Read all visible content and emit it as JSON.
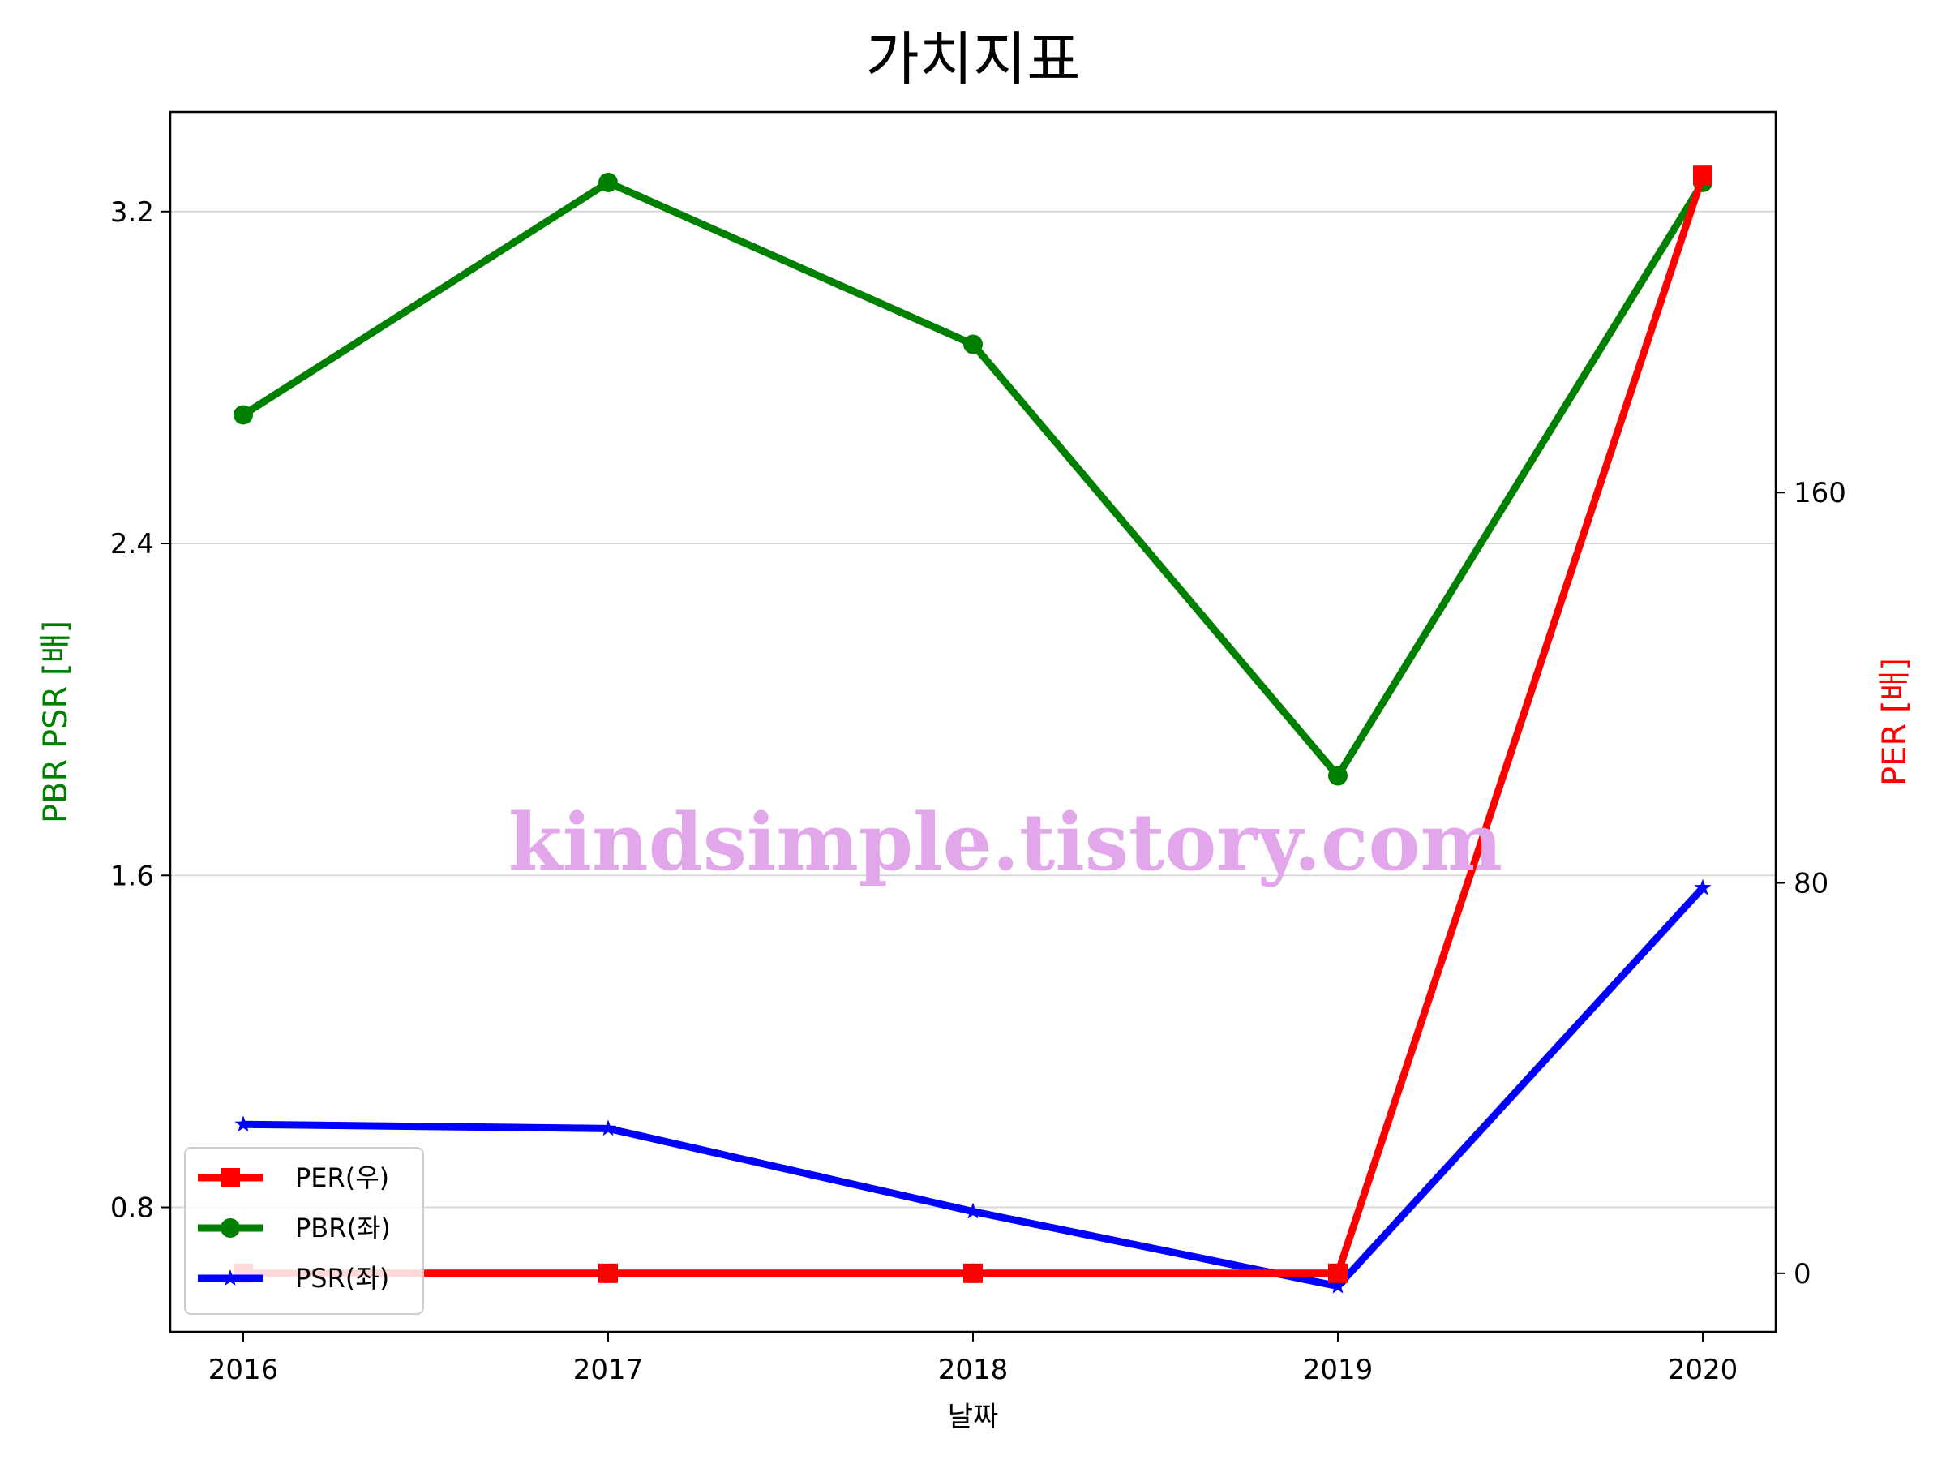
{
  "chart_data": {
    "type": "line",
    "title": "가치지표",
    "xlabel": "날짜",
    "ylabel_left": "PBR PSR [배]",
    "ylabel_right": "PER [배]",
    "categories": [
      "2016",
      "2017",
      "2018",
      "2019",
      "2020"
    ],
    "left_axis": {
      "ylim": [
        0.5,
        3.44
      ],
      "ticks": [
        "0.8",
        "1.6",
        "2.4",
        "3.2"
      ],
      "tick_values": [
        0.8,
        1.6,
        2.4,
        3.2
      ]
    },
    "right_axis": {
      "ylim": [
        -12,
        238
      ],
      "ticks": [
        "0",
        "80",
        "160"
      ],
      "tick_values": [
        0,
        80,
        160
      ]
    },
    "grid": "horizontal",
    "legend_position": "lower-left",
    "series": [
      {
        "name": "PER(우)",
        "axis": "right",
        "marker": "square",
        "color": "#ff0000",
        "values": [
          0,
          0,
          0,
          0,
          225
        ]
      },
      {
        "name": "PBR(좌)",
        "axis": "left",
        "marker": "circle",
        "color": "#008000",
        "values": [
          2.71,
          3.27,
          2.88,
          1.84,
          3.27
        ]
      },
      {
        "name": "PSR(좌)",
        "axis": "left",
        "marker": "star",
        "color": "#0000ff",
        "values": [
          1.0,
          0.99,
          0.79,
          0.61,
          1.57
        ]
      }
    ],
    "watermark": "kindsimple.tistory.com"
  }
}
